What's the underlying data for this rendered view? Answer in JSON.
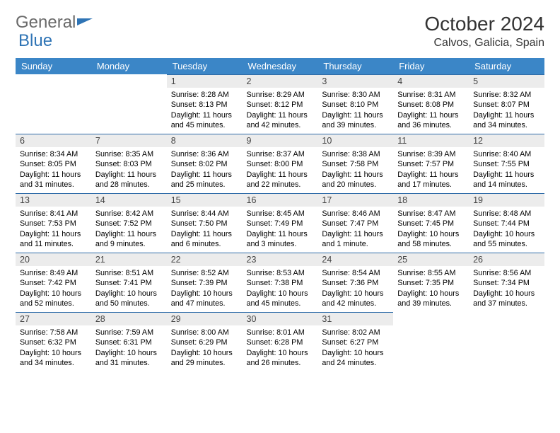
{
  "logo": {
    "general": "General",
    "blue": "Blue"
  },
  "title": "October 2024",
  "location": "Calvos, Galicia, Spain",
  "colors": {
    "header_bg": "#3b86c7",
    "daynum_bg": "#ececec",
    "border": "#2f6ca8",
    "logo_grey": "#6a6a6a",
    "logo_blue": "#2f74b5"
  },
  "weekdays": [
    "Sunday",
    "Monday",
    "Tuesday",
    "Wednesday",
    "Thursday",
    "Friday",
    "Saturday"
  ],
  "weeks": [
    [
      null,
      null,
      {
        "n": "1",
        "rise": "8:28 AM",
        "set": "8:13 PM",
        "day": "11 hours and 45 minutes."
      },
      {
        "n": "2",
        "rise": "8:29 AM",
        "set": "8:12 PM",
        "day": "11 hours and 42 minutes."
      },
      {
        "n": "3",
        "rise": "8:30 AM",
        "set": "8:10 PM",
        "day": "11 hours and 39 minutes."
      },
      {
        "n": "4",
        "rise": "8:31 AM",
        "set": "8:08 PM",
        "day": "11 hours and 36 minutes."
      },
      {
        "n": "5",
        "rise": "8:32 AM",
        "set": "8:07 PM",
        "day": "11 hours and 34 minutes."
      }
    ],
    [
      {
        "n": "6",
        "rise": "8:34 AM",
        "set": "8:05 PM",
        "day": "11 hours and 31 minutes."
      },
      {
        "n": "7",
        "rise": "8:35 AM",
        "set": "8:03 PM",
        "day": "11 hours and 28 minutes."
      },
      {
        "n": "8",
        "rise": "8:36 AM",
        "set": "8:02 PM",
        "day": "11 hours and 25 minutes."
      },
      {
        "n": "9",
        "rise": "8:37 AM",
        "set": "8:00 PM",
        "day": "11 hours and 22 minutes."
      },
      {
        "n": "10",
        "rise": "8:38 AM",
        "set": "7:58 PM",
        "day": "11 hours and 20 minutes."
      },
      {
        "n": "11",
        "rise": "8:39 AM",
        "set": "7:57 PM",
        "day": "11 hours and 17 minutes."
      },
      {
        "n": "12",
        "rise": "8:40 AM",
        "set": "7:55 PM",
        "day": "11 hours and 14 minutes."
      }
    ],
    [
      {
        "n": "13",
        "rise": "8:41 AM",
        "set": "7:53 PM",
        "day": "11 hours and 11 minutes."
      },
      {
        "n": "14",
        "rise": "8:42 AM",
        "set": "7:52 PM",
        "day": "11 hours and 9 minutes."
      },
      {
        "n": "15",
        "rise": "8:44 AM",
        "set": "7:50 PM",
        "day": "11 hours and 6 minutes."
      },
      {
        "n": "16",
        "rise": "8:45 AM",
        "set": "7:49 PM",
        "day": "11 hours and 3 minutes."
      },
      {
        "n": "17",
        "rise": "8:46 AM",
        "set": "7:47 PM",
        "day": "11 hours and 1 minute."
      },
      {
        "n": "18",
        "rise": "8:47 AM",
        "set": "7:45 PM",
        "day": "10 hours and 58 minutes."
      },
      {
        "n": "19",
        "rise": "8:48 AM",
        "set": "7:44 PM",
        "day": "10 hours and 55 minutes."
      }
    ],
    [
      {
        "n": "20",
        "rise": "8:49 AM",
        "set": "7:42 PM",
        "day": "10 hours and 52 minutes."
      },
      {
        "n": "21",
        "rise": "8:51 AM",
        "set": "7:41 PM",
        "day": "10 hours and 50 minutes."
      },
      {
        "n": "22",
        "rise": "8:52 AM",
        "set": "7:39 PM",
        "day": "10 hours and 47 minutes."
      },
      {
        "n": "23",
        "rise": "8:53 AM",
        "set": "7:38 PM",
        "day": "10 hours and 45 minutes."
      },
      {
        "n": "24",
        "rise": "8:54 AM",
        "set": "7:36 PM",
        "day": "10 hours and 42 minutes."
      },
      {
        "n": "25",
        "rise": "8:55 AM",
        "set": "7:35 PM",
        "day": "10 hours and 39 minutes."
      },
      {
        "n": "26",
        "rise": "8:56 AM",
        "set": "7:34 PM",
        "day": "10 hours and 37 minutes."
      }
    ],
    [
      {
        "n": "27",
        "rise": "7:58 AM",
        "set": "6:32 PM",
        "day": "10 hours and 34 minutes."
      },
      {
        "n": "28",
        "rise": "7:59 AM",
        "set": "6:31 PM",
        "day": "10 hours and 31 minutes."
      },
      {
        "n": "29",
        "rise": "8:00 AM",
        "set": "6:29 PM",
        "day": "10 hours and 29 minutes."
      },
      {
        "n": "30",
        "rise": "8:01 AM",
        "set": "6:28 PM",
        "day": "10 hours and 26 minutes."
      },
      {
        "n": "31",
        "rise": "8:02 AM",
        "set": "6:27 PM",
        "day": "10 hours and 24 minutes."
      },
      null,
      null
    ]
  ],
  "labels": {
    "sunrise": "Sunrise: ",
    "sunset": "Sunset: ",
    "daylight": "Daylight: "
  }
}
